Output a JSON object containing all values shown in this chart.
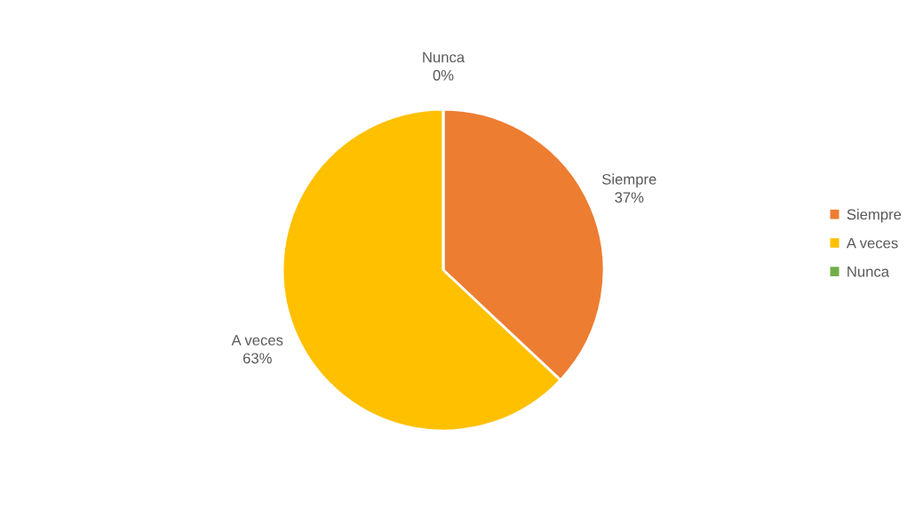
{
  "chart_data": {
    "type": "pie",
    "categories": [
      "Siempre",
      "A veces",
      "Nunca"
    ],
    "values": [
      37,
      63,
      0
    ],
    "colors": [
      "#ed7d31",
      "#ffc000",
      "#70ad47"
    ],
    "value_labels": [
      "37%",
      "63%",
      "0%"
    ],
    "legend": "right"
  }
}
